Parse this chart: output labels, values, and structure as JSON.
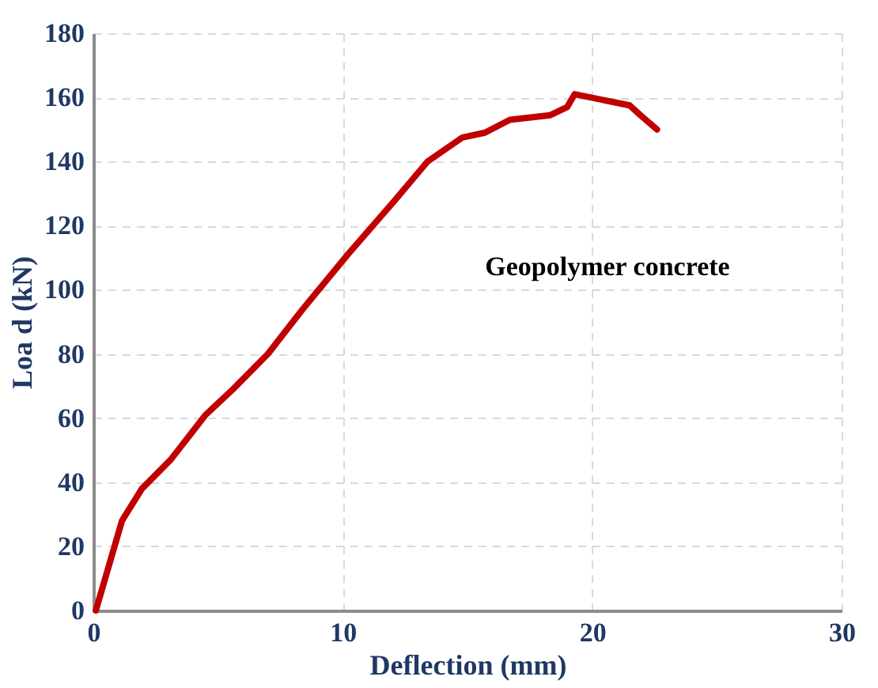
{
  "chart_data": {
    "type": "line",
    "xlabel": "Deflection (mm)",
    "ylabel": "Loa d (kN)",
    "x": [
      0.1,
      0.7,
      1.15,
      1.95,
      3.1,
      4.5,
      5.6,
      7.0,
      8.4,
      10.2,
      12.1,
      13.4,
      14.8,
      15.7,
      16.7,
      18.3,
      19.0,
      19.3,
      21.5,
      22.0,
      22.6
    ],
    "series": [
      {
        "color": "#c00000",
        "values": [
          0,
          16,
          28,
          38,
          47,
          61,
          69,
          80,
          94,
          111,
          128,
          140,
          147.5,
          149,
          153,
          154.4,
          157,
          161,
          157.5,
          154,
          150
        ]
      }
    ],
    "xlim": [
      0,
      30
    ],
    "xticks": [
      0,
      10,
      20,
      30
    ],
    "ylim": [
      0,
      180
    ],
    "yticks": [
      0,
      20,
      40,
      60,
      80,
      100,
      120,
      140,
      160,
      180
    ],
    "grid": true,
    "marker": "none",
    "line_style": "solid",
    "legend": false,
    "annotations": [
      "Geopolymer concrete"
    ]
  }
}
